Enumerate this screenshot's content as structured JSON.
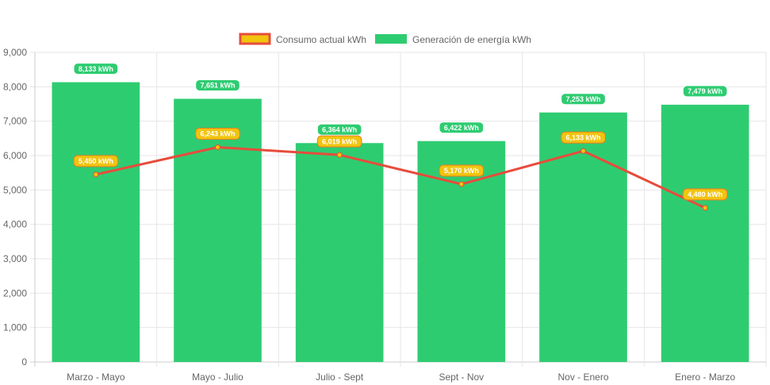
{
  "chart_data": {
    "type": "bar",
    "categories": [
      "Marzo - Mayo",
      "Mayo - Julio",
      "Julio - Sept",
      "Sept - Nov",
      "Nov - Enero",
      "Enero - Marzo"
    ],
    "series": [
      {
        "name": "Consumo actual kWh",
        "type": "line",
        "color": "#e74c3c",
        "fill": "#f1c40f",
        "values": [
          5450,
          6243,
          6019,
          5170,
          6133,
          4480
        ],
        "labels": [
          "5,450 kWh",
          "6,243 kWh",
          "6,019 kWh",
          "5,170 kWh",
          "6,133 kWh",
          "4,480 kWh"
        ]
      },
      {
        "name": "Generación de energía kWh",
        "type": "bar",
        "color": "#2ecc71",
        "values": [
          8133,
          7651,
          6364,
          6422,
          7253,
          7479
        ],
        "labels": [
          "8,133 kWh",
          "7,651 kWh",
          "6,364 kWh",
          "6,422 kWh",
          "7,253 kWh",
          "7,479 kWh"
        ]
      }
    ],
    "ylim": [
      0,
      9000
    ],
    "yticks": [
      "0",
      "1,000",
      "2,000",
      "3,000",
      "4,000",
      "5,000",
      "6,000",
      "7,000",
      "8,000",
      "9,000"
    ],
    "legend_position": "top",
    "grid": true
  }
}
